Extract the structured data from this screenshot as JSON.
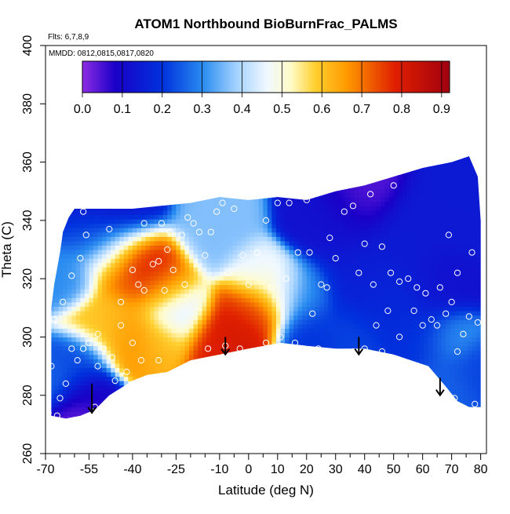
{
  "chart_data": {
    "type": "heatmap",
    "title": "ATOM1 Northbound BioBurnFrac_PALMS",
    "subtitle_flights": "Flts: 6,7,8,9",
    "subtitle_dates": "MMDD: 0812,0815,0817,0820",
    "xlabel": "Latitude (deg N)",
    "ylabel": "Theta (C)",
    "xlim": [
      -70,
      82
    ],
    "ylim": [
      260,
      400
    ],
    "x_ticks_major": [
      -70,
      -55,
      -40,
      -25,
      -10,
      0,
      10,
      20,
      30,
      40,
      50,
      60,
      70,
      80
    ],
    "x_ticks_minor": [
      -65,
      -60,
      -50,
      -45,
      -35,
      -30,
      -20,
      -15,
      -5,
      5,
      15,
      25,
      35,
      45,
      55,
      65,
      75
    ],
    "y_ticks": [
      260,
      280,
      300,
      320,
      340,
      360,
      380,
      400
    ],
    "colorbar": {
      "min": 0.0,
      "max": 0.92,
      "ticks": [
        0.0,
        0.1,
        0.2,
        0.3,
        0.4,
        0.5,
        0.6,
        0.7,
        0.8,
        0.9
      ],
      "tick_labels": [
        "0.0",
        "0.1",
        "0.2",
        "0.3",
        "0.4",
        "0.5",
        "0.6",
        "0.7",
        "0.8",
        "0.9"
      ],
      "stops": [
        [
          0.0,
          "#8a2be2"
        ],
        [
          0.08,
          "#1a00c8"
        ],
        [
          0.2,
          "#0033dd"
        ],
        [
          0.3,
          "#2a8cf0"
        ],
        [
          0.38,
          "#a0d0ff"
        ],
        [
          0.46,
          "#f0f8ff"
        ],
        [
          0.52,
          "#fffbc8"
        ],
        [
          0.58,
          "#ffd030"
        ],
        [
          0.66,
          "#ff9a00"
        ],
        [
          0.78,
          "#e02000"
        ],
        [
          0.92,
          "#a00010"
        ]
      ]
    },
    "domain": {
      "top": [
        [
          -68,
          310
        ],
        [
          -67,
          318
        ],
        [
          -65,
          329
        ],
        [
          -64,
          336
        ],
        [
          -62,
          341
        ],
        [
          -60,
          344
        ],
        [
          -50,
          344
        ],
        [
          -40,
          344
        ],
        [
          -30,
          345
        ],
        [
          -20,
          346
        ],
        [
          -10,
          348
        ],
        [
          0,
          347
        ],
        [
          10,
          348
        ],
        [
          20,
          347
        ],
        [
          30,
          350
        ],
        [
          40,
          352
        ],
        [
          50,
          355
        ],
        [
          60,
          358
        ],
        [
          70,
          360
        ],
        [
          76,
          362
        ],
        [
          79,
          355
        ],
        [
          80,
          340
        ],
        [
          80,
          300
        ],
        [
          80,
          276
        ]
      ],
      "bottom": [
        [
          80,
          276
        ],
        [
          76,
          276
        ],
        [
          72,
          278
        ],
        [
          68,
          283
        ],
        [
          62,
          290
        ],
        [
          50,
          294
        ],
        [
          40,
          296
        ],
        [
          30,
          296
        ],
        [
          20,
          297
        ],
        [
          11,
          298
        ],
        [
          0,
          296
        ],
        [
          -10,
          294
        ],
        [
          -20,
          292
        ],
        [
          -28,
          288
        ],
        [
          -35,
          287
        ],
        [
          -40,
          285
        ],
        [
          -48,
          280
        ],
        [
          -53,
          275
        ],
        [
          -58,
          273
        ],
        [
          -63,
          272
        ],
        [
          -68,
          273
        ]
      ]
    },
    "field_sources": [
      {
        "lat": -35,
        "theta": 325,
        "value": 0.85,
        "radius": 6
      },
      {
        "lat": -44,
        "theta": 326,
        "value": 0.7,
        "radius": 7
      },
      {
        "lat": -30,
        "theta": 318,
        "value": 0.66,
        "radius": 6
      },
      {
        "lat": -50,
        "theta": 305,
        "value": 0.6,
        "radius": 6
      },
      {
        "lat": -40,
        "theta": 300,
        "value": 0.66,
        "radius": 6
      },
      {
        "lat": -30,
        "theta": 298,
        "value": 0.62,
        "radius": 5
      },
      {
        "lat": -5,
        "theta": 300,
        "value": 0.82,
        "radius": 6
      },
      {
        "lat": 2,
        "theta": 310,
        "value": 0.74,
        "radius": 6
      },
      {
        "lat": -10,
        "theta": 297,
        "value": 0.78,
        "radius": 6
      },
      {
        "lat": 10,
        "theta": 318,
        "value": 0.5,
        "radius": 5
      },
      {
        "lat": 3,
        "theta": 322,
        "value": 0.45,
        "radius": 5
      },
      {
        "lat": -12,
        "theta": 338,
        "value": 0.36,
        "radius": 7
      },
      {
        "lat": -52,
        "theta": 333,
        "value": 0.22,
        "radius": 6
      },
      {
        "lat": -62,
        "theta": 320,
        "value": 0.3,
        "radius": 5
      },
      {
        "lat": -58,
        "theta": 292,
        "value": 0.22,
        "radius": 5
      },
      {
        "lat": -55,
        "theta": 280,
        "value": 0.1,
        "radius": 5
      },
      {
        "lat": -58,
        "theta": 274,
        "value": 0.02,
        "radius": 5
      },
      {
        "lat": -66,
        "theta": 285,
        "value": 0.25,
        "radius": 5
      },
      {
        "lat": -45,
        "theta": 342,
        "value": 0.12,
        "radius": 8
      },
      {
        "lat": -25,
        "theta": 308,
        "value": 0.42,
        "radius": 6
      },
      {
        "lat": 18,
        "theta": 315,
        "value": 0.3,
        "radius": 6
      },
      {
        "lat": 22,
        "theta": 300,
        "value": 0.2,
        "radius": 6
      },
      {
        "lat": 30,
        "theta": 340,
        "value": 0.12,
        "radius": 8
      },
      {
        "lat": 38,
        "theta": 348,
        "value": 0.03,
        "radius": 6
      },
      {
        "lat": 40,
        "theta": 320,
        "value": 0.15,
        "radius": 8
      },
      {
        "lat": 35,
        "theta": 300,
        "value": 0.22,
        "radius": 6
      },
      {
        "lat": 50,
        "theta": 312,
        "value": 0.18,
        "radius": 8
      },
      {
        "lat": 55,
        "theta": 332,
        "value": 0.14,
        "radius": 8
      },
      {
        "lat": 65,
        "theta": 318,
        "value": 0.12,
        "radius": 7
      },
      {
        "lat": 70,
        "theta": 300,
        "value": 0.32,
        "radius": 5
      },
      {
        "lat": 68,
        "theta": 285,
        "value": 0.25,
        "radius": 5
      },
      {
        "lat": 75,
        "theta": 340,
        "value": 0.14,
        "radius": 6
      },
      {
        "lat": 78,
        "theta": 290,
        "value": 0.22,
        "radius": 5
      },
      {
        "lat": 62,
        "theta": 300,
        "value": 0.2,
        "radius": 6
      }
    ],
    "sample_points": [
      [
        -69,
        274
      ],
      [
        -66,
        273
      ],
      [
        -65,
        279
      ],
      [
        -63,
        284
      ],
      [
        -61,
        296
      ],
      [
        -59,
        292
      ],
      [
        -57,
        296
      ],
      [
        -55,
        298
      ],
      [
        -52,
        301
      ],
      [
        -50,
        296
      ],
      [
        -52,
        290
      ],
      [
        -47,
        293
      ],
      [
        -44,
        304
      ],
      [
        -40,
        298
      ],
      [
        -44,
        312
      ],
      [
        -36,
        316
      ],
      [
        -31,
        326
      ],
      [
        -29,
        316
      ],
      [
        -26,
        323
      ],
      [
        -22,
        318
      ],
      [
        -68,
        290
      ],
      [
        -67,
        306
      ],
      [
        -64,
        312
      ],
      [
        -61,
        321
      ],
      [
        -58,
        327
      ],
      [
        -57,
        343
      ],
      [
        -53,
        276
      ],
      [
        -49,
        277
      ],
      [
        -46,
        285
      ],
      [
        -42,
        288
      ],
      [
        -37,
        292
      ],
      [
        -31,
        292
      ],
      [
        -27,
        336
      ],
      [
        -23,
        335
      ],
      [
        -19,
        339
      ],
      [
        -17,
        336
      ],
      [
        -13,
        336
      ],
      [
        -9,
        346
      ],
      [
        -5,
        344
      ],
      [
        -2,
        328
      ],
      [
        3,
        329
      ],
      [
        6,
        340
      ],
      [
        10,
        346
      ],
      [
        14,
        346
      ],
      [
        17,
        329
      ],
      [
        21,
        329
      ],
      [
        25,
        318
      ],
      [
        28,
        334
      ],
      [
        30,
        327
      ],
      [
        33,
        343
      ],
      [
        36,
        345
      ],
      [
        38,
        322
      ],
      [
        40,
        332
      ],
      [
        43,
        318
      ],
      [
        46,
        331
      ],
      [
        49,
        322
      ],
      [
        52,
        319
      ],
      [
        55,
        320
      ],
      [
        58,
        317
      ],
      [
        61,
        315
      ],
      [
        -14,
        296
      ],
      [
        -8,
        297
      ],
      [
        -3,
        296
      ],
      [
        6,
        298
      ],
      [
        11,
        300
      ],
      [
        16,
        298
      ],
      [
        24,
        296
      ],
      [
        36,
        295
      ],
      [
        40,
        296
      ],
      [
        46,
        295
      ],
      [
        52,
        300
      ],
      [
        57,
        309
      ],
      [
        60,
        304
      ],
      [
        63,
        306
      ],
      [
        65,
        304
      ],
      [
        68,
        308
      ],
      [
        70,
        312
      ],
      [
        72,
        295
      ],
      [
        74,
        301
      ],
      [
        76,
        307
      ],
      [
        -40,
        323
      ],
      [
        -38,
        318
      ],
      [
        -33,
        325
      ],
      [
        -28,
        330
      ],
      [
        -15,
        328
      ],
      [
        -7,
        322
      ],
      [
        0,
        318
      ],
      [
        8,
        317
      ],
      [
        13,
        320
      ],
      [
        22,
        308
      ],
      [
        27,
        317
      ],
      [
        44,
        304
      ],
      [
        48,
        309
      ],
      [
        66,
        317
      ],
      [
        69,
        335
      ],
      [
        72,
        322
      ],
      [
        77,
        329
      ],
      [
        79,
        305
      ],
      [
        78,
        277
      ],
      [
        71,
        279
      ],
      [
        -56,
        335
      ],
      [
        -48,
        337
      ],
      [
        -36,
        339
      ],
      [
        -30,
        339
      ],
      [
        -21,
        341
      ],
      [
        -11,
        343
      ],
      [
        2,
        349
      ],
      [
        20,
        347
      ],
      [
        42,
        349
      ],
      [
        50,
        352
      ]
    ],
    "arrows": [
      [
        -54,
        284,
        274
      ],
      [
        -8,
        300,
        294
      ],
      [
        38,
        300,
        294
      ],
      [
        66,
        286,
        280
      ]
    ]
  }
}
